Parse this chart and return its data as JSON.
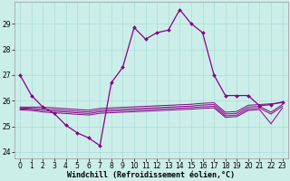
{
  "bg_color": "#cceee8",
  "grid_color": "#aaddda",
  "line_color": "#880088",
  "xlabel": "Windchill (Refroidissement éolien,°C)",
  "xlabel_fontsize": 6.0,
  "tick_fontsize": 5.5,
  "ylim": [
    23.75,
    29.85
  ],
  "yticks": [
    24,
    25,
    26,
    27,
    28,
    29
  ],
  "xlim": [
    -0.5,
    23.5
  ],
  "xticks": [
    0,
    1,
    2,
    3,
    4,
    5,
    6,
    7,
    8,
    9,
    10,
    11,
    12,
    13,
    14,
    15,
    16,
    17,
    18,
    19,
    20,
    21,
    22,
    23
  ],
  "main_y": [
    27.0,
    26.2,
    25.75,
    25.5,
    25.05,
    24.75,
    24.55,
    24.25,
    26.7,
    27.3,
    28.85,
    28.4,
    28.65,
    28.75,
    29.55,
    29.0,
    28.65,
    27.0,
    26.2,
    26.2,
    26.2,
    25.8,
    25.85,
    25.95
  ],
  "flat1_y": [
    25.75,
    25.75,
    25.75,
    25.72,
    25.69,
    25.66,
    25.63,
    25.7,
    25.72,
    25.74,
    25.76,
    25.78,
    25.8,
    25.82,
    25.84,
    25.86,
    25.9,
    25.92,
    25.55,
    25.58,
    25.82,
    25.85,
    25.88,
    25.92
  ],
  "flat2_y": [
    25.72,
    25.7,
    25.68,
    25.65,
    25.62,
    25.59,
    25.56,
    25.63,
    25.65,
    25.67,
    25.69,
    25.71,
    25.73,
    25.75,
    25.77,
    25.79,
    25.83,
    25.85,
    25.48,
    25.51,
    25.75,
    25.78,
    25.55,
    25.85
  ],
  "flat3_y": [
    25.68,
    25.66,
    25.62,
    25.59,
    25.56,
    25.53,
    25.5,
    25.57,
    25.59,
    25.61,
    25.63,
    25.65,
    25.67,
    25.69,
    25.71,
    25.73,
    25.76,
    25.78,
    25.41,
    25.44,
    25.68,
    25.71,
    25.48,
    25.78
  ],
  "flat4_y": [
    25.64,
    25.62,
    25.56,
    25.53,
    25.5,
    25.47,
    25.44,
    25.51,
    25.53,
    25.55,
    25.57,
    25.59,
    25.61,
    25.63,
    25.65,
    25.67,
    25.7,
    25.72,
    25.35,
    25.38,
    25.62,
    25.65,
    25.1,
    25.72
  ]
}
